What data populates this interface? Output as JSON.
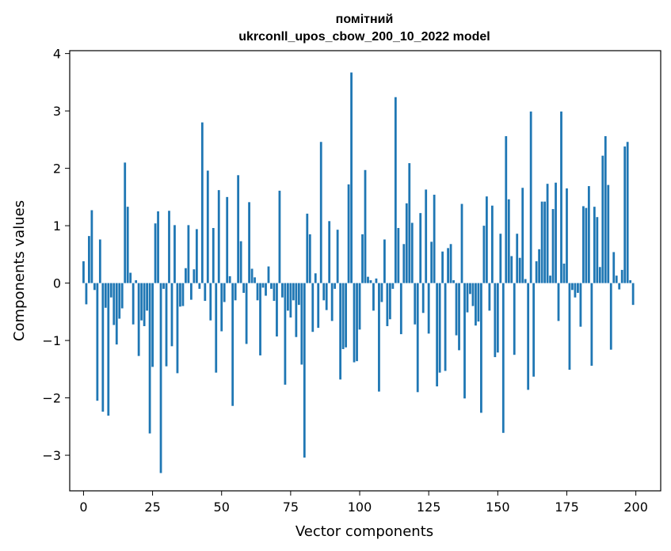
{
  "chart_data": {
    "type": "bar",
    "title": "помітний",
    "subtitle": "ukrconll_upos_cbow_200_10_2022 model",
    "xlabel": "Vector components",
    "ylabel": "Components values",
    "xlim": [
      -5,
      209
    ],
    "ylim": [
      -3.62,
      4.05
    ],
    "xticks": [
      0,
      25,
      50,
      75,
      100,
      125,
      150,
      175,
      200
    ],
    "xtick_labels": [
      "0",
      "25",
      "50",
      "75",
      "100",
      "125",
      "150",
      "175",
      "200"
    ],
    "yticks": [
      -3,
      -2,
      -1,
      0,
      1,
      2,
      3,
      4
    ],
    "ytick_labels": [
      "−3",
      "−2",
      "−1",
      "0",
      "1",
      "2",
      "3",
      "4"
    ],
    "grid": false,
    "bar_color": "#1f77b4",
    "series": [
      {
        "values": [
          0.38,
          -0.37,
          0.82,
          1.27,
          -0.12,
          -2.05,
          0.76,
          -2.24,
          -0.43,
          -2.31,
          -0.25,
          -0.73,
          -1.07,
          -0.62,
          -0.44,
          2.1,
          1.33,
          0.18,
          -0.72,
          0.05,
          -1.27,
          -0.65,
          -0.75,
          -0.48,
          -2.62,
          -1.46,
          1.04,
          1.25,
          -3.31,
          -0.1,
          -1.45,
          1.26,
          -1.1,
          1.01,
          -1.57,
          -0.41,
          -0.4,
          0.26,
          1.01,
          -0.29,
          0.24,
          0.94,
          -0.1,
          2.8,
          -0.31,
          1.96,
          -0.65,
          0.96,
          -1.56,
          1.62,
          -0.84,
          -0.33,
          1.5,
          0.12,
          -2.14,
          -0.3,
          1.88,
          0.73,
          -0.17,
          -1.06,
          1.41,
          0.25,
          0.1,
          -0.3,
          -1.26,
          -0.08,
          -0.22,
          0.29,
          -0.1,
          -0.31,
          -0.93,
          1.61,
          -0.25,
          -1.77,
          -0.48,
          -0.6,
          -0.3,
          -0.94,
          -0.38,
          -1.42,
          -3.04,
          1.21,
          0.85,
          -0.85,
          0.17,
          -0.78,
          2.46,
          -0.3,
          -0.47,
          1.08,
          -0.66,
          -0.1,
          0.93,
          -1.68,
          -1.15,
          -1.12,
          1.72,
          3.67,
          -1.38,
          -1.36,
          -0.81,
          0.85,
          1.97,
          0.11,
          0.05,
          -0.48,
          0.08,
          -1.89,
          -0.33,
          0.76,
          -0.75,
          -0.63,
          -0.1,
          3.24,
          0.96,
          -0.89,
          0.68,
          1.39,
          2.09,
          1.05,
          -0.72,
          -1.9,
          1.22,
          -0.52,
          1.63,
          -0.88,
          0.72,
          1.54,
          -1.8,
          -1.56,
          0.55,
          -1.53,
          0.61,
          0.68,
          0.05,
          -0.91,
          -1.17,
          1.38,
          -2.01,
          -0.51,
          -0.19,
          -0.4,
          -0.74,
          -0.67,
          -2.26,
          1.0,
          1.51,
          -0.48,
          1.35,
          -1.29,
          -1.21,
          0.86,
          -2.61,
          2.56,
          1.46,
          0.47,
          -1.25,
          0.86,
          0.44,
          1.66,
          0.07,
          -1.86,
          2.99,
          -1.63,
          0.38,
          0.59,
          1.42,
          1.42,
          1.73,
          0.13,
          1.29,
          1.75,
          -0.66,
          2.99,
          0.34,
          1.65,
          -1.51,
          -0.12,
          -0.25,
          -0.17,
          -0.76,
          1.34,
          1.31,
          1.69,
          -1.44,
          1.33,
          1.15,
          0.28,
          2.22,
          2.56,
          1.71,
          -1.16,
          0.54,
          0.13,
          -0.11,
          0.23,
          2.38,
          2.46,
          0.05,
          -0.38
        ]
      }
    ]
  }
}
